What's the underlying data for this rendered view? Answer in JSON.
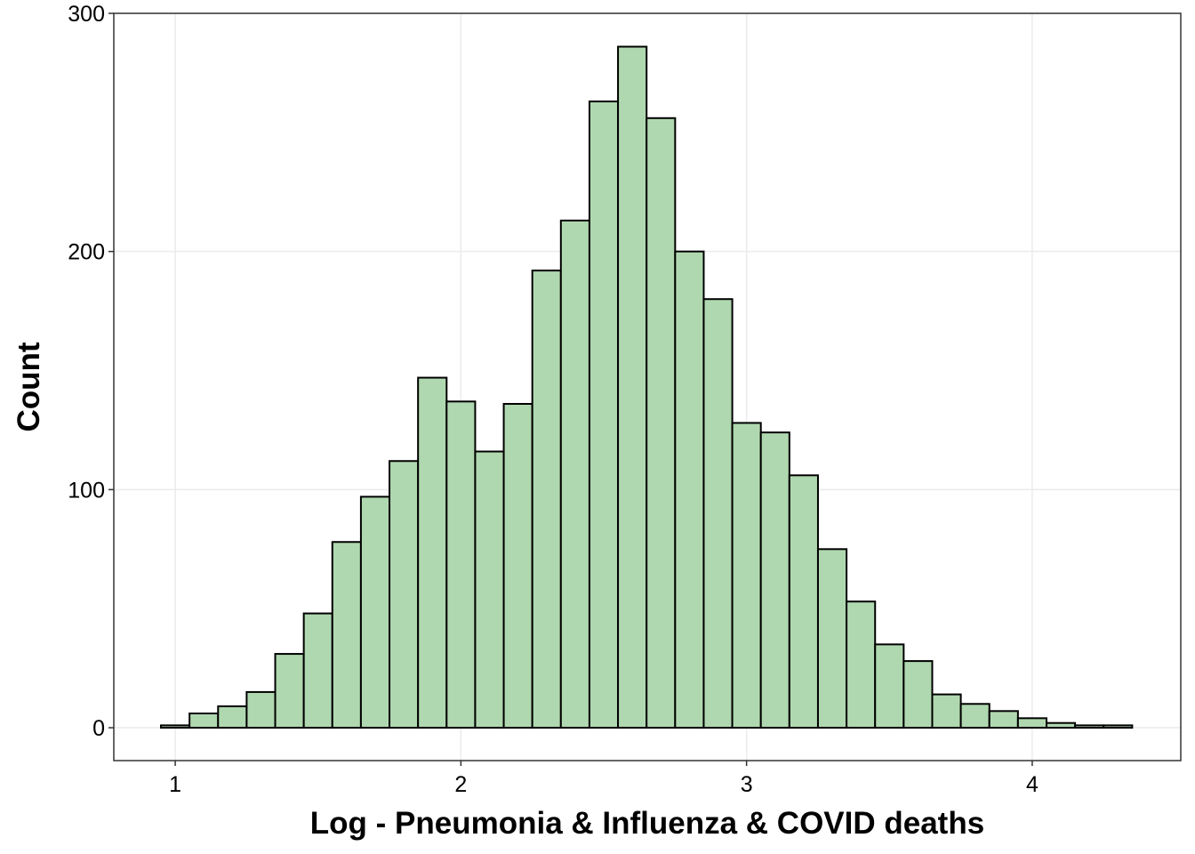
{
  "chart_data": {
    "type": "histogram",
    "x_label": "Log - Pneumonia & Influenza & COVID deaths",
    "y_label": "Count",
    "bins": [
      0.95,
      1.05,
      1.15,
      1.25,
      1.35,
      1.45,
      1.55,
      1.65,
      1.75,
      1.85,
      1.95,
      2.05,
      2.15,
      2.25,
      2.35,
      2.45,
      2.55,
      2.65,
      2.75,
      2.85,
      2.95,
      3.05,
      3.15,
      3.25,
      3.35,
      3.45,
      3.55,
      3.65,
      3.75,
      3.85,
      3.95,
      4.05,
      4.15,
      4.25,
      4.35
    ],
    "counts": [
      1,
      6,
      9,
      15,
      31,
      48,
      78,
      97,
      112,
      147,
      137,
      116,
      136,
      192,
      213,
      263,
      286,
      256,
      200,
      180,
      128,
      124,
      106,
      75,
      53,
      35,
      28,
      14,
      10,
      7,
      4,
      2,
      1,
      1
    ],
    "color": "#b0d8b0",
    "edge_color": "#000000",
    "xlim": [
      0.785,
      4.52
    ],
    "ylim": [
      -13.8,
      300
    ],
    "xticks": [
      1,
      2,
      3,
      4
    ],
    "yticks": [
      0,
      100,
      200,
      300
    ],
    "grid": true
  }
}
